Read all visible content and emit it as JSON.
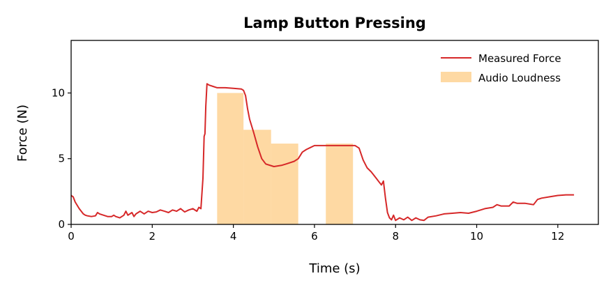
{
  "chart_data": {
    "type": "line",
    "title": "Lamp Button Pressing",
    "xlabel": "Time (s)",
    "ylabel": "Force (N)",
    "xlim": [
      0,
      13
    ],
    "ylim": [
      0,
      14
    ],
    "xticks": [
      0,
      2,
      4,
      6,
      8,
      10,
      12
    ],
    "yticks": [
      0,
      5,
      10
    ],
    "grid": false,
    "legend_position": "top-right",
    "colors": {
      "force": "#d62728",
      "audio": "#fdb347"
    },
    "series": [
      {
        "name": "Measured Force",
        "type": "line",
        "x": [
          0,
          0.05,
          0.1,
          0.2,
          0.3,
          0.35,
          0.4,
          0.5,
          0.6,
          0.65,
          0.7,
          0.8,
          0.9,
          1.0,
          1.05,
          1.1,
          1.2,
          1.3,
          1.35,
          1.4,
          1.5,
          1.55,
          1.6,
          1.7,
          1.8,
          1.9,
          2.0,
          2.1,
          2.2,
          2.3,
          2.4,
          2.5,
          2.6,
          2.7,
          2.8,
          2.9,
          3.0,
          3.1,
          3.15,
          3.2,
          3.25,
          3.28,
          3.3,
          3.32,
          3.35,
          3.4,
          3.5,
          3.6,
          3.8,
          4.0,
          4.2,
          4.25,
          4.3,
          4.35,
          4.4,
          4.5,
          4.6,
          4.7,
          4.8,
          5.0,
          5.2,
          5.3,
          5.5,
          5.6,
          5.7,
          5.8,
          5.9,
          6.0,
          6.2,
          6.5,
          6.8,
          7.0,
          7.05,
          7.1,
          7.2,
          7.3,
          7.4,
          7.5,
          7.6,
          7.65,
          7.7,
          7.75,
          7.8,
          7.85,
          7.9,
          7.95,
          8.0,
          8.1,
          8.2,
          8.3,
          8.4,
          8.5,
          8.6,
          8.7,
          8.8,
          9.0,
          9.2,
          9.4,
          9.6,
          9.8,
          10.0,
          10.2,
          10.4,
          10.5,
          10.6,
          10.8,
          10.9,
          11.0,
          11.2,
          11.4,
          11.5,
          11.6,
          11.8,
          12.0,
          12.2,
          12.4
        ],
        "y": [
          2.2,
          2.1,
          1.7,
          1.2,
          0.8,
          0.7,
          0.65,
          0.6,
          0.65,
          0.9,
          0.8,
          0.7,
          0.6,
          0.6,
          0.7,
          0.6,
          0.5,
          0.7,
          1.0,
          0.7,
          0.9,
          0.6,
          0.8,
          1.0,
          0.8,
          1.0,
          0.9,
          0.95,
          1.1,
          1.0,
          0.9,
          1.1,
          1.0,
          1.2,
          0.95,
          1.1,
          1.2,
          1.0,
          1.3,
          1.2,
          3.5,
          6.7,
          6.9,
          9.0,
          10.7,
          10.6,
          10.5,
          10.4,
          10.4,
          10.35,
          10.3,
          10.2,
          9.8,
          8.8,
          8.0,
          7.0,
          5.9,
          5.0,
          4.6,
          4.4,
          4.5,
          4.6,
          4.8,
          5.0,
          5.5,
          5.7,
          5.85,
          6.0,
          6.0,
          6.0,
          6.0,
          6.0,
          5.9,
          5.8,
          4.9,
          4.3,
          4.0,
          3.6,
          3.2,
          3.0,
          3.3,
          2.0,
          0.9,
          0.5,
          0.35,
          0.7,
          0.3,
          0.5,
          0.35,
          0.55,
          0.3,
          0.5,
          0.35,
          0.3,
          0.55,
          0.65,
          0.8,
          0.85,
          0.9,
          0.85,
          1.0,
          1.2,
          1.3,
          1.5,
          1.4,
          1.4,
          1.7,
          1.6,
          1.6,
          1.5,
          1.9,
          2.0,
          2.1,
          2.2,
          2.25,
          2.25
        ]
      },
      {
        "name": "Audio Loudness",
        "type": "bar",
        "bars": [
          {
            "x0": 3.6,
            "x1": 4.25,
            "value": 10.0
          },
          {
            "x0": 4.25,
            "x1": 4.93,
            "value": 7.2
          },
          {
            "x0": 4.93,
            "x1": 5.6,
            "value": 6.15
          },
          {
            "x0": 6.28,
            "x1": 6.95,
            "value": 6.15
          }
        ]
      }
    ]
  }
}
